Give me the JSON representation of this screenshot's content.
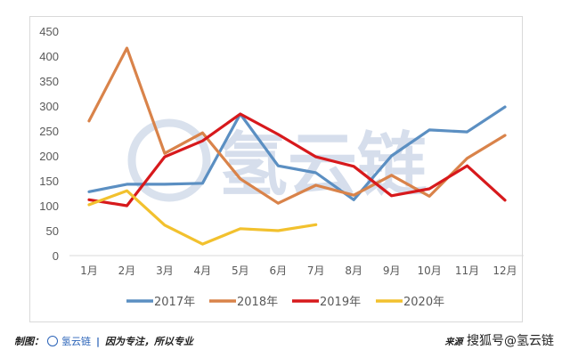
{
  "chart_data": {
    "type": "line",
    "title": "",
    "xlabel": "",
    "ylabel": "",
    "ylim": [
      0,
      450
    ],
    "yticks": [
      0,
      50,
      100,
      150,
      200,
      250,
      300,
      350,
      400,
      450
    ],
    "grid": false,
    "legend_position": "bottom",
    "categories": [
      "1月",
      "2月",
      "3月",
      "4月",
      "5月",
      "6月",
      "7月",
      "8月",
      "9月",
      "10月",
      "11月",
      "12月"
    ],
    "series": [
      {
        "name": "2017年",
        "color": "#5b8fc2",
        "values": [
          128,
          143,
          143,
          145,
          284,
          180,
          166,
          112,
          200,
          252,
          248,
          298
        ]
      },
      {
        "name": "2018年",
        "color": "#d9834a",
        "values": [
          270,
          416,
          205,
          246,
          154,
          105,
          141,
          121,
          161,
          119,
          195,
          241
        ]
      },
      {
        "name": "2019年",
        "color": "#d7191c",
        "values": [
          112,
          100,
          198,
          230,
          284,
          243,
          198,
          179,
          120,
          134,
          180,
          111
        ]
      },
      {
        "name": "2020年",
        "color": "#f2c12e",
        "values": [
          102,
          130,
          61,
          23,
          54,
          50,
          62
        ]
      }
    ]
  },
  "watermark": {
    "text": "氢云链",
    "color": "#c9d4e6"
  },
  "footer": {
    "left_prefix": "制图：",
    "brand": "氢云链",
    "separator": "|",
    "slogan": "因为专注，所以专业",
    "right_prefix": "来源",
    "right_text": "搜狐号@氢云链"
  }
}
